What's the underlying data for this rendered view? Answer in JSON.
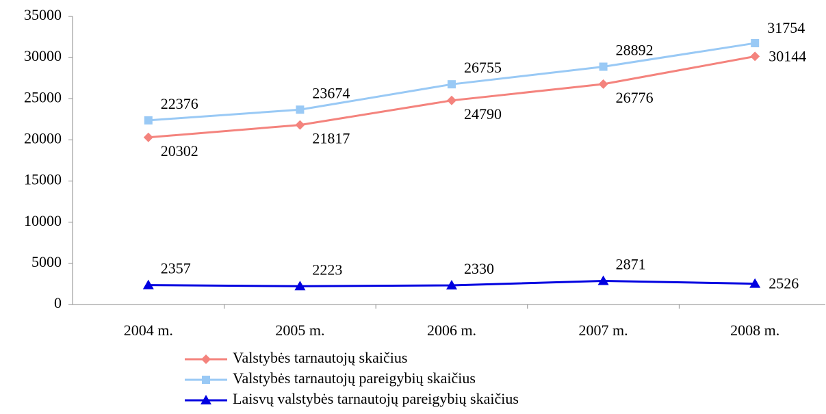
{
  "chart_data": {
    "type": "line",
    "categories": [
      "2004 m.",
      "2005 m.",
      "2006 m.",
      "2007 m.",
      "2008 m."
    ],
    "series": [
      {
        "name": "Valstybės tarnautojų skaičius",
        "color": "#f4837d",
        "marker": "diamond",
        "values": [
          20302,
          21817,
          24790,
          26776,
          30144
        ]
      },
      {
        "name": "Valstybės tarnautojų pareigybių skaičius",
        "color": "#99c9f5",
        "marker": "square",
        "values": [
          22376,
          23674,
          26755,
          28892,
          31754
        ]
      },
      {
        "name": "Laisvų valstybės tarnautojų pareigybių skaičius",
        "color": "#0000e0",
        "marker": "triangle",
        "values": [
          2357,
          2223,
          2330,
          2871,
          2526
        ]
      }
    ],
    "ylim": [
      0,
      35000
    ],
    "yticks": [
      0,
      5000,
      10000,
      15000,
      20000,
      25000,
      30000,
      35000
    ],
    "grid": false,
    "legend": "bottom"
  }
}
